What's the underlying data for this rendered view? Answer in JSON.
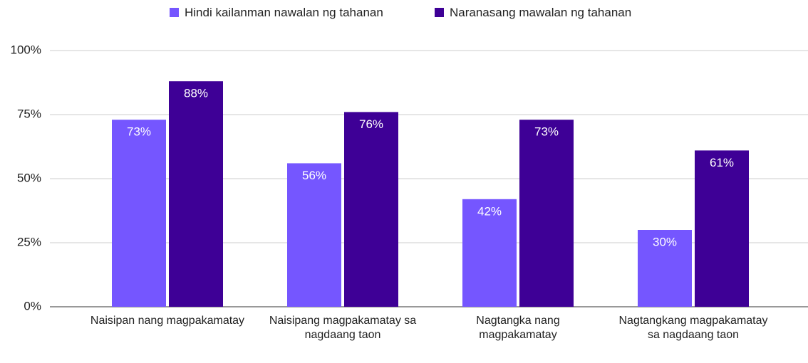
{
  "chart_data": {
    "type": "bar",
    "categories": [
      "Naisipan nang magpakamatay",
      "Naisipang magpakamatay sa nagdaang taon",
      "Nagtangka nang magpakamatay",
      "Nagtangkang magpakamatay sa nagdaang taon"
    ],
    "series": [
      {
        "name": "Hindi kailanman nawalan ng tahanan",
        "color": "#7556ff",
        "values": [
          73,
          56,
          42,
          30
        ],
        "value_labels": [
          "73%",
          "56%",
          "42%",
          "30%"
        ]
      },
      {
        "name": "Naranasang mawalan ng tahanan",
        "color": "#3e0096",
        "values": [
          88,
          76,
          73,
          61
        ],
        "value_labels": [
          "88%",
          "76%",
          "73%",
          "61%"
        ]
      }
    ],
    "ylim": [
      0,
      100
    ],
    "yticks": [
      {
        "value": 0,
        "label": "0%"
      },
      {
        "value": 25,
        "label": "25%"
      },
      {
        "value": 50,
        "label": "50%"
      },
      {
        "value": 75,
        "label": "75%"
      },
      {
        "value": 100,
        "label": "100%"
      }
    ],
    "grid": true,
    "legend": "top"
  }
}
